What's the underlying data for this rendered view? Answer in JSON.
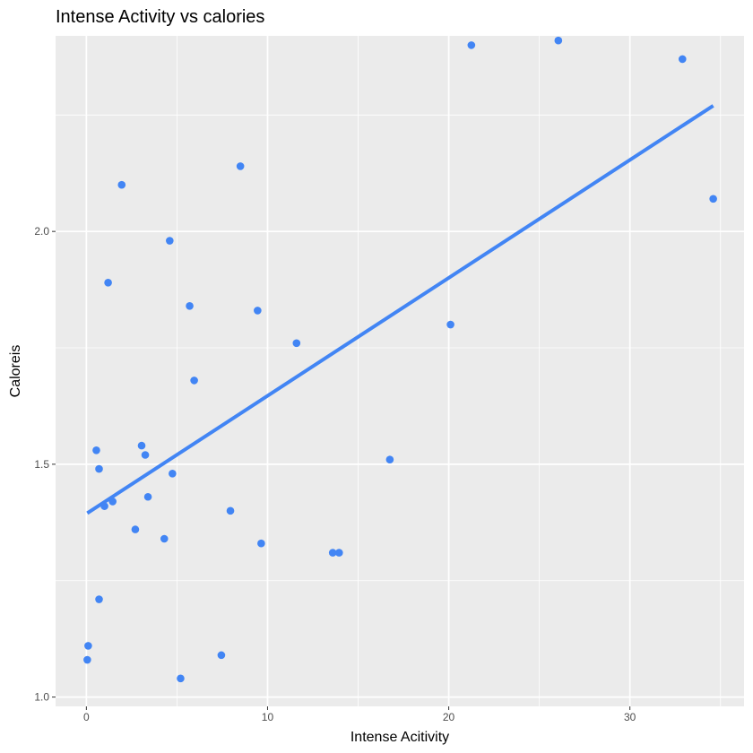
{
  "chart_data": {
    "type": "scatter",
    "title": "Intense Activity vs calories",
    "xlabel": "Intense Acitivity",
    "ylabel": "Caloreis",
    "xlim": [
      -1.7,
      36.3
    ],
    "ylim": [
      0.98,
      2.42
    ],
    "x_ticks": [
      0,
      10,
      20,
      30
    ],
    "y_ticks": [
      1.0,
      1.5,
      2.0
    ],
    "x_tick_labels": [
      "0",
      "10",
      "20",
      "30"
    ],
    "y_tick_labels": [
      "1.0",
      "1.5",
      "2.0"
    ],
    "grid": true,
    "legend": "none",
    "points": [
      {
        "x": 0.05,
        "y": 1.08
      },
      {
        "x": 0.1,
        "y": 1.11
      },
      {
        "x": 0.55,
        "y": 1.53
      },
      {
        "x": 0.7,
        "y": 1.49
      },
      {
        "x": 0.7,
        "y": 1.21
      },
      {
        "x": 1.0,
        "y": 1.41
      },
      {
        "x": 1.2,
        "y": 1.89
      },
      {
        "x": 1.45,
        "y": 1.42
      },
      {
        "x": 1.95,
        "y": 2.1
      },
      {
        "x": 2.7,
        "y": 1.36
      },
      {
        "x": 3.05,
        "y": 1.54
      },
      {
        "x": 3.25,
        "y": 1.52
      },
      {
        "x": 3.4,
        "y": 1.43
      },
      {
        "x": 4.3,
        "y": 1.34
      },
      {
        "x": 4.6,
        "y": 1.98
      },
      {
        "x": 4.75,
        "y": 1.48
      },
      {
        "x": 5.2,
        "y": 1.04
      },
      {
        "x": 5.7,
        "y": 1.84
      },
      {
        "x": 5.95,
        "y": 1.68
      },
      {
        "x": 7.45,
        "y": 1.09
      },
      {
        "x": 7.95,
        "y": 1.4
      },
      {
        "x": 8.5,
        "y": 2.14
      },
      {
        "x": 9.45,
        "y": 1.83
      },
      {
        "x": 9.65,
        "y": 1.33
      },
      {
        "x": 11.6,
        "y": 1.76
      },
      {
        "x": 13.6,
        "y": 1.31
      },
      {
        "x": 13.95,
        "y": 1.31
      },
      {
        "x": 16.75,
        "y": 1.51
      },
      {
        "x": 20.1,
        "y": 1.8
      },
      {
        "x": 21.25,
        "y": 2.4
      },
      {
        "x": 26.05,
        "y": 2.41
      },
      {
        "x": 32.9,
        "y": 2.37
      },
      {
        "x": 34.6,
        "y": 2.07
      }
    ],
    "fit_line": {
      "x": [
        0.05,
        34.6
      ],
      "y": [
        1.395,
        2.27
      ]
    },
    "colors": {
      "points": "#4285F4",
      "fit_line": "#4285F4",
      "panel": "#EBEBEB",
      "grid": "#FFFFFF"
    }
  }
}
